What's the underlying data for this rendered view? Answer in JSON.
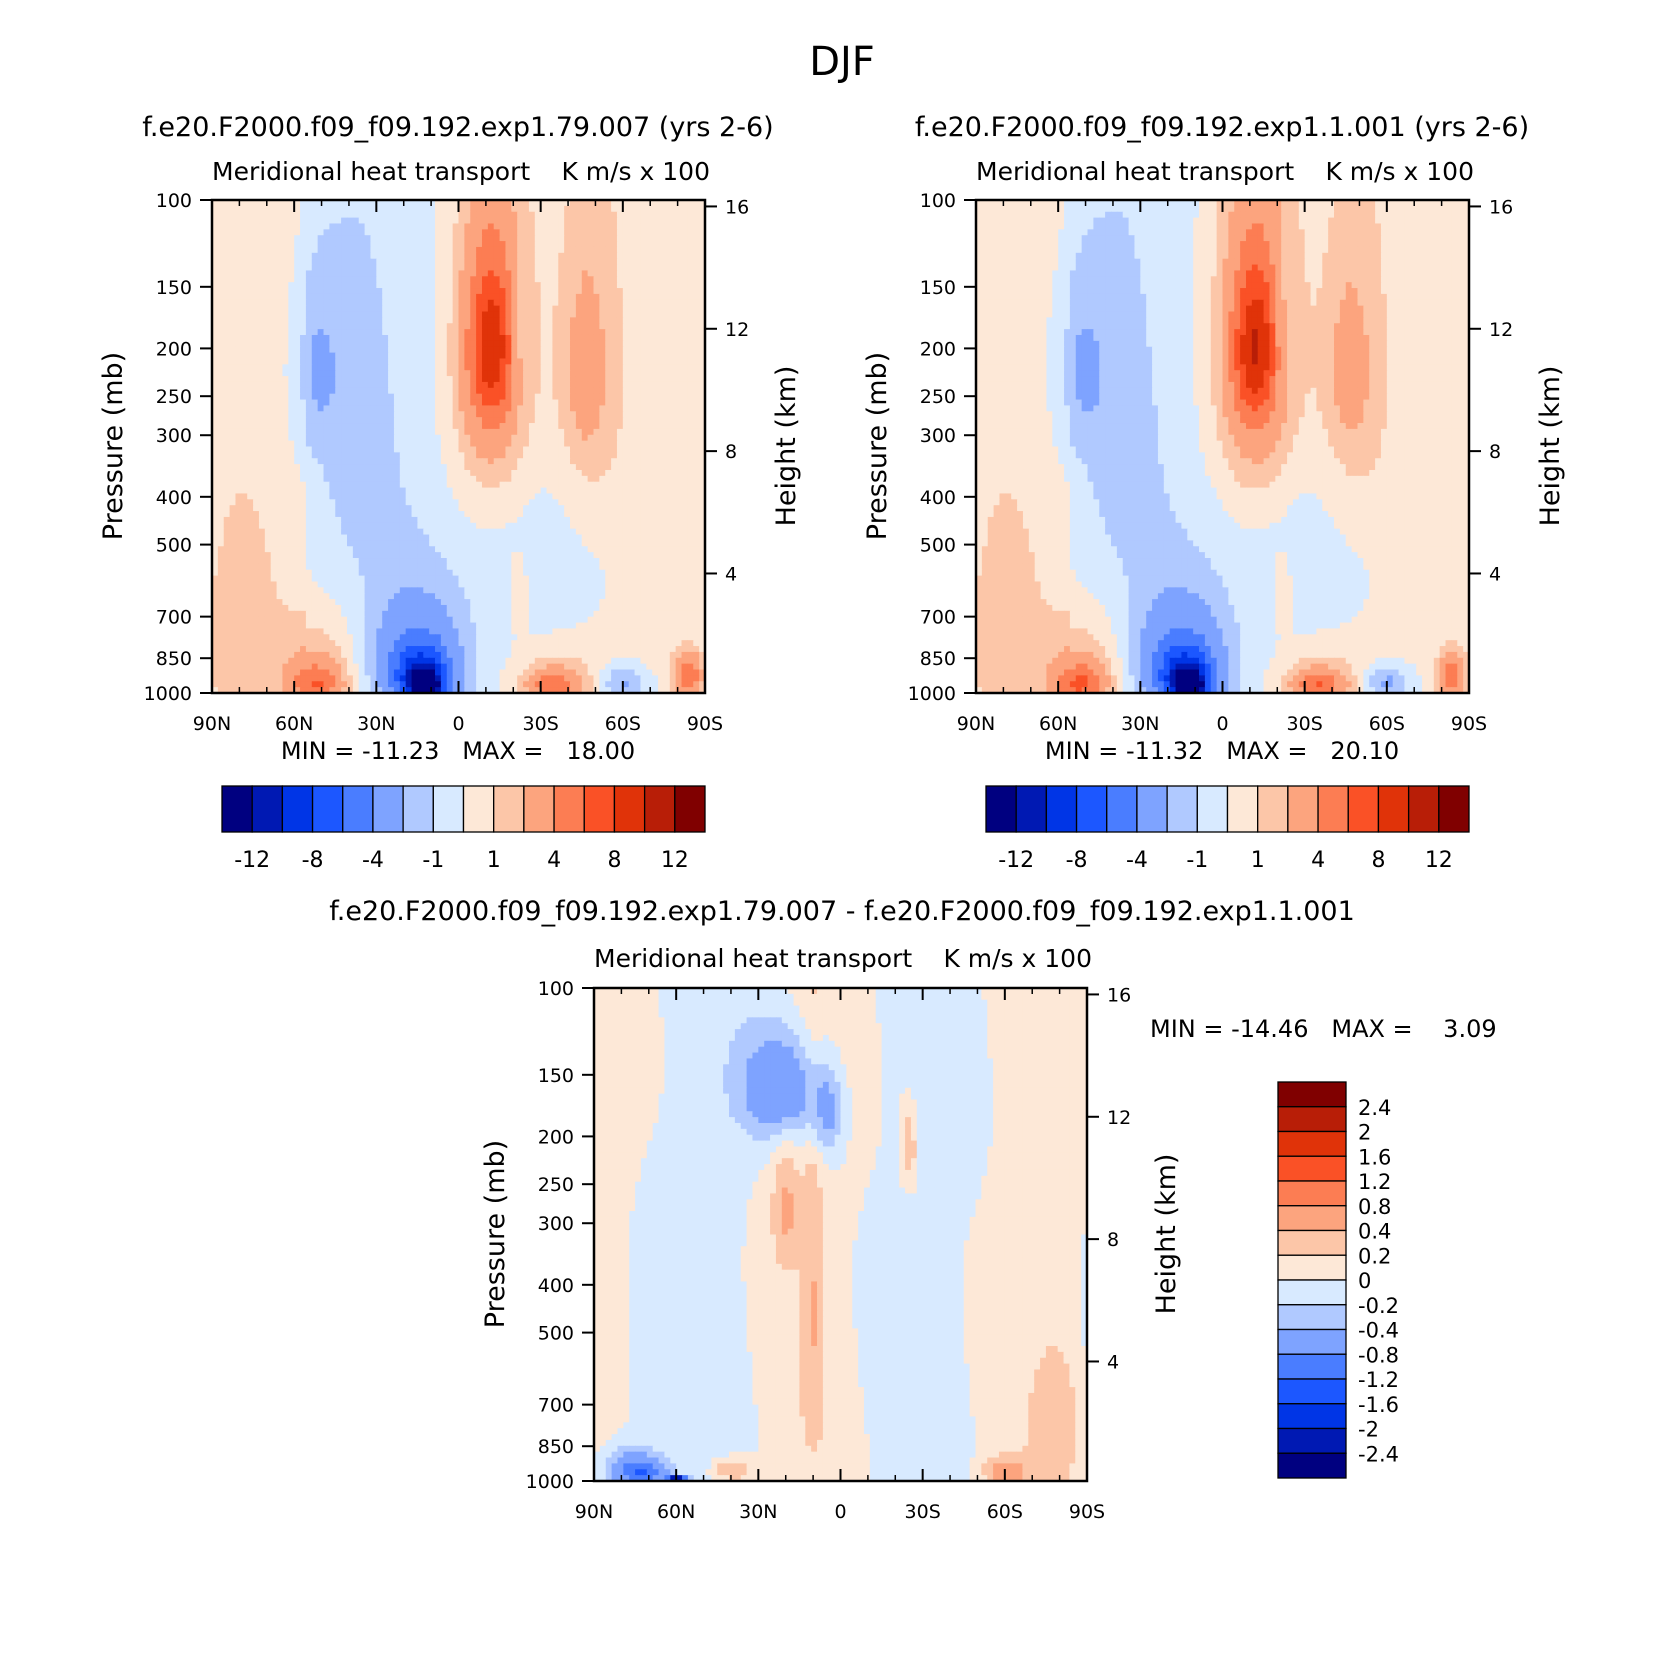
{
  "figure_title": "DJF",
  "shared": {
    "plot_subtitle": "Meridional heat transport",
    "units_label": "K m/s x 100",
    "ylabel_left": "Pressure (mb)",
    "ylabel_right": "Height (km)",
    "x_ticks": [
      "90N",
      "60N",
      "30N",
      "0",
      "30S",
      "60S",
      "90S"
    ],
    "pressure_ticks": [
      "100",
      "150",
      "200",
      "250",
      "300",
      "400",
      "500",
      "700",
      "850",
      "1000"
    ],
    "height_ticks": [
      "16",
      "12",
      "8",
      "4"
    ]
  },
  "colors": {
    "absolute_scale": [
      "#000080",
      "#0019b3",
      "#0035e6",
      "#1c57ff",
      "#4a7dff",
      "#7ea3ff",
      "#b0c9ff",
      "#d8eaff",
      "#fde8d7",
      "#fcc6a8",
      "#fca47e",
      "#fc7d53",
      "#fa5126",
      "#e03309",
      "#b81e07",
      "#800000"
    ],
    "difference_scale": [
      "#000080",
      "#0019b3",
      "#0035e6",
      "#1c57ff",
      "#4a7dff",
      "#7ea3ff",
      "#b0c9ff",
      "#d8eaff",
      "#fde8d7",
      "#fcc6a8",
      "#fca47e",
      "#fc7d53",
      "#fa5126",
      "#e03309",
      "#b81e07",
      "#800000"
    ]
  },
  "chart_data": [
    {
      "type": "heatmap",
      "title": "f.e20.F2000.f09_f09.192.exp1.79.007 (yrs 2-6)",
      "stats": "MIN = -11.23   MAX =   18.00",
      "min": -11.23,
      "max": 18.0,
      "colorbar_labels": [
        "-12",
        "-8",
        "-4",
        "-1",
        "1",
        "4",
        "8",
        "12"
      ],
      "features": [
        {
          "lat": -12,
          "p": 200,
          "value": 6.0,
          "lat_half": 8,
          "p_half": 70
        },
        {
          "lat": -12,
          "p": 210,
          "value": 3.0,
          "lat_half": 12,
          "p_half": 150
        },
        {
          "lat": -10,
          "p": 210,
          "value": 1.2,
          "lat_half": 20,
          "p_half": 250
        },
        {
          "lat": 12,
          "p": 960,
          "value": -10.5,
          "lat_half": 5,
          "p_half": 50
        },
        {
          "lat": 13,
          "p": 930,
          "value": -6.5,
          "lat_half": 9,
          "p_half": 110
        },
        {
          "lat": 15,
          "p": 880,
          "value": -3.2,
          "lat_half": 14,
          "p_half": 190
        },
        {
          "lat": 16,
          "p": 820,
          "value": -1.6,
          "lat_half": 19,
          "p_half": 320
        },
        {
          "lat": 52,
          "p": 960,
          "value": 4.5,
          "lat_half": 9,
          "p_half": 90
        },
        {
          "lat": 50,
          "p": 900,
          "value": 1.8,
          "lat_half": 14,
          "p_half": 220
        },
        {
          "lat": -35,
          "p": 970,
          "value": 4.0,
          "lat_half": 9,
          "p_half": 60
        },
        {
          "lat": -35,
          "p": 940,
          "value": 1.8,
          "lat_half": 15,
          "p_half": 120
        },
        {
          "lat": -60,
          "p": 955,
          "value": -2.6,
          "lat_half": 9,
          "p_half": 80
        },
        {
          "lat": 52,
          "p": 220,
          "value": -1.6,
          "lat_half": 9,
          "p_half": 90
        },
        {
          "lat": -46,
          "p": 220,
          "value": 1.6,
          "lat_half": 8,
          "p_half": 90
        },
        {
          "lat": -22,
          "p": 190,
          "value": -1.3,
          "lat_half": 3,
          "p_half": 60
        },
        {
          "lat": -84,
          "p": 920,
          "value": 5.5,
          "lat_half": 5,
          "p_half": 100
        },
        {
          "lat": 78,
          "p": 780,
          "value": 1.2,
          "lat_half": 12,
          "p_half": 380
        },
        {
          "lat": -48,
          "p": 300,
          "value": 1.2,
          "lat_half": 14,
          "p_half": 260
        },
        {
          "lat": -22,
          "p": 620,
          "value": 1.1,
          "lat_half": 4,
          "p_half": 120
        },
        {
          "lat": 40,
          "p": 300,
          "value": -1.2,
          "lat_half": 20,
          "p_half": 320
        },
        {
          "lat": -40,
          "p": 520,
          "value": -1.1,
          "lat_half": 25,
          "p_half": 220
        }
      ]
    },
    {
      "type": "heatmap",
      "title": "f.e20.F2000.f09_f09.192.exp1.1.001 (yrs 2-6)",
      "stats": "MIN = -11.32   MAX =   20.10",
      "min": -11.32,
      "max": 20.1,
      "colorbar_labels": [
        "-12",
        "-8",
        "-4",
        "-1",
        "1",
        "4",
        "8",
        "12"
      ],
      "features": [
        {
          "lat": -12,
          "p": 200,
          "value": 6.5,
          "lat_half": 8,
          "p_half": 70
        },
        {
          "lat": -12,
          "p": 210,
          "value": 3.0,
          "lat_half": 13,
          "p_half": 150
        },
        {
          "lat": -10,
          "p": 210,
          "value": 1.2,
          "lat_half": 21,
          "p_half": 250
        },
        {
          "lat": 12,
          "p": 960,
          "value": -10.8,
          "lat_half": 5,
          "p_half": 50
        },
        {
          "lat": 13,
          "p": 930,
          "value": -6.5,
          "lat_half": 9,
          "p_half": 110
        },
        {
          "lat": 15,
          "p": 880,
          "value": -3.2,
          "lat_half": 14,
          "p_half": 190
        },
        {
          "lat": 16,
          "p": 820,
          "value": -1.6,
          "lat_half": 19,
          "p_half": 320
        },
        {
          "lat": 52,
          "p": 960,
          "value": 4.8,
          "lat_half": 9,
          "p_half": 90
        },
        {
          "lat": 50,
          "p": 900,
          "value": 1.8,
          "lat_half": 14,
          "p_half": 220
        },
        {
          "lat": -35,
          "p": 970,
          "value": 4.2,
          "lat_half": 9,
          "p_half": 60
        },
        {
          "lat": -35,
          "p": 940,
          "value": 1.8,
          "lat_half": 15,
          "p_half": 120
        },
        {
          "lat": -60,
          "p": 955,
          "value": -2.8,
          "lat_half": 9,
          "p_half": 80
        },
        {
          "lat": 52,
          "p": 220,
          "value": -1.6,
          "lat_half": 10,
          "p_half": 90
        },
        {
          "lat": -46,
          "p": 220,
          "value": 1.5,
          "lat_half": 8,
          "p_half": 80
        },
        {
          "lat": -22,
          "p": 190,
          "value": -1.3,
          "lat_half": 3,
          "p_half": 60
        },
        {
          "lat": -84,
          "p": 920,
          "value": 5.0,
          "lat_half": 5,
          "p_half": 100
        },
        {
          "lat": 78,
          "p": 780,
          "value": 1.2,
          "lat_half": 12,
          "p_half": 380
        },
        {
          "lat": -48,
          "p": 300,
          "value": 1.2,
          "lat_half": 14,
          "p_half": 260
        },
        {
          "lat": -22,
          "p": 620,
          "value": 1.1,
          "lat_half": 4,
          "p_half": 120
        },
        {
          "lat": 40,
          "p": 300,
          "value": -1.2,
          "lat_half": 20,
          "p_half": 320
        },
        {
          "lat": -40,
          "p": 520,
          "value": -1.1,
          "lat_half": 25,
          "p_half": 220
        }
      ]
    },
    {
      "type": "heatmap",
      "title": "f.e20.F2000.f09_f09.192.exp1.79.007 - f.e20.F2000.f09_f09.192.exp1.1.001",
      "stats": "MIN = -14.46   MAX =    3.09",
      "min": -14.46,
      "max": 3.09,
      "colorbar_labels": [
        "2.4",
        "2",
        "1.6",
        "1.2",
        "0.8",
        "0.4",
        "0.2",
        "0",
        "-0.2",
        "-0.4",
        "-0.8",
        "-1.2",
        "-1.6",
        "-2",
        "-2.4"
      ],
      "features": [
        {
          "lat": 80,
          "p": 940,
          "value": -0.5,
          "lat_half": 10,
          "p_half": 120
        },
        {
          "lat": 72,
          "p": 960,
          "value": -1.0,
          "lat_half": 8,
          "p_half": 60
        },
        {
          "lat": 60,
          "p": 995,
          "value": -3.0,
          "lat_half": 3,
          "p_half": 15
        },
        {
          "lat": 22,
          "p": 160,
          "value": -0.8,
          "lat_half": 14,
          "p_half": 40
        },
        {
          "lat": 5,
          "p": 180,
          "value": -0.5,
          "lat_half": 6,
          "p_half": 40
        },
        {
          "lat": 20,
          "p": 280,
          "value": 0.4,
          "lat_half": 5,
          "p_half": 80
        },
        {
          "lat": 10,
          "p": 420,
          "value": 0.3,
          "lat_half": 4,
          "p_half": 300
        },
        {
          "lat": -25,
          "p": 210,
          "value": 0.4,
          "lat_half": 3,
          "p_half": 40
        },
        {
          "lat": 40,
          "p": 950,
          "value": 0.5,
          "lat_half": 8,
          "p_half": 60
        },
        {
          "lat": -60,
          "p": 960,
          "value": 0.5,
          "lat_half": 8,
          "p_half": 60
        },
        {
          "lat": -80,
          "p": 750,
          "value": 0.3,
          "lat_half": 8,
          "p_half": 250
        },
        {
          "lat": 70,
          "p": 700,
          "value": -0.1,
          "lat_half": 10,
          "p_half": 280
        }
      ]
    }
  ]
}
